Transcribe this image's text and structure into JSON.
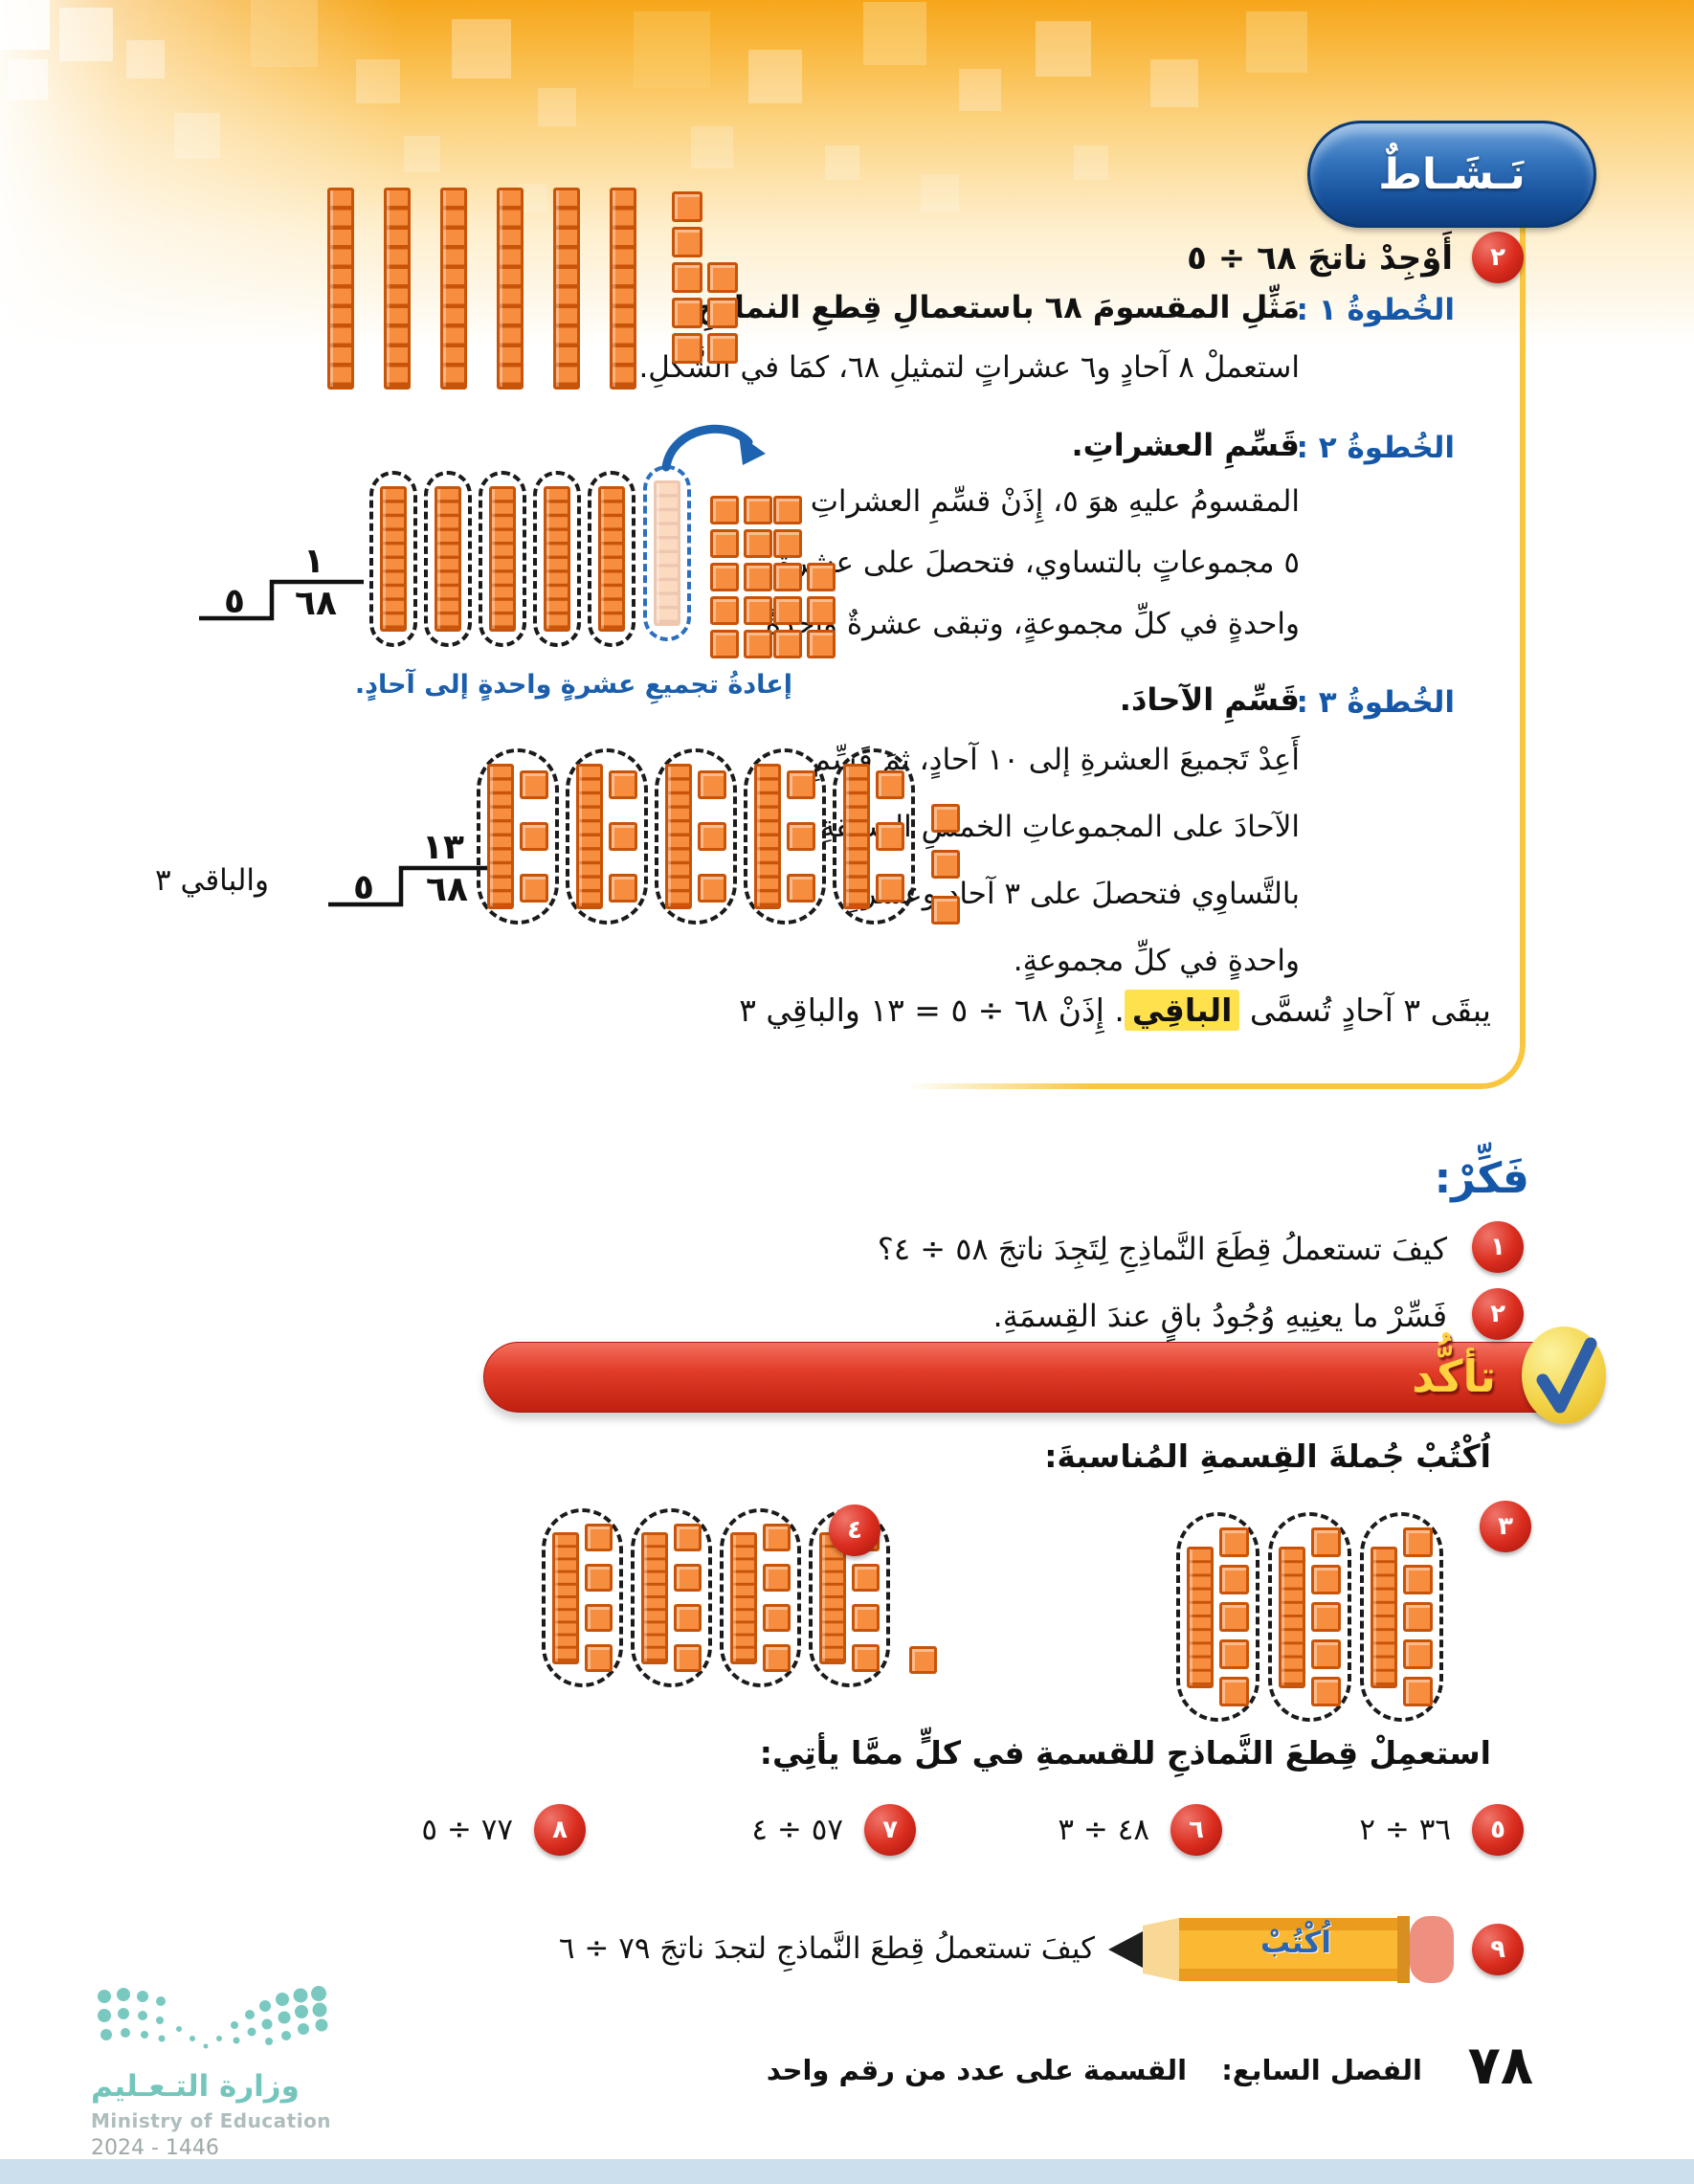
{
  "activity": {
    "badge": "نَـشَـاطٌ",
    "q2": {
      "num": "٢",
      "text": "أَوْجِدْ ناتجَ ٦٨ ÷ ٥"
    },
    "steps": [
      {
        "label": "الخُطوةُ ١ :",
        "title": "مَثِّلِ المقسومَ ٦٨ باستعمالِ قِطعِ النماذجِ.",
        "lines": [
          "استعملْ ٨ آحادٍ و٦ عشراتٍ لتمثيلِ ٦٨، كمَا في الشَّكلِ."
        ]
      },
      {
        "label": "الخُطوةُ ٢ :",
        "title": "قَسِّمِ العشراتِ.",
        "lines": [
          "المقسومُ عليهِ هوَ ٥، إِذَنْ قسِّمِ العشراتِ",
          "٥ مجموعاتٍ بالتساوي، فتحصلَ على عشرةٍ",
          "واحدةٍ في كلِّ مجموعةٍ، وتبقى عشرةٌ واحدةٌ."
        ]
      },
      {
        "label": "الخُطوةُ ٣ :",
        "title": "قَسِّمِ الآحادَ.",
        "lines": [
          "أَعِدْ تَجميعَ العشرةِ إلى ١٠ آحادٍ، ثمَ قَسِّمِ",
          "الآحادَ على المجموعاتِ الخمسِ السابقةِ",
          "بالتَّساوِي فتحصلَ على ٣ آحادٍ وعشرةٍ",
          "واحدةٍ في كلِّ مجموعةٍ."
        ]
      }
    ],
    "regroup_caption": "إعادةُ تجميعِ عشرةٍ واحدةٍ إلى آحادٍ.",
    "division1": {
      "quotient": "١",
      "dividend": "٦٨",
      "divisor": "٥"
    },
    "division2": {
      "quotient": "١٣",
      "dividend": "٦٨",
      "divisor": "٥",
      "remainder_text": "والباقي ٣"
    },
    "result_line": {
      "before": "يبقَى ٣ آحادٍ تُسمَّى ",
      "highlight": "الباقِي",
      "after": ". إِذَنْ ٦٨ ÷ ٥ = ١٣ والباقِي ٣"
    }
  },
  "think": {
    "heading": "فَكِّرْ:",
    "items": [
      {
        "num": "١",
        "text": "كيفَ تستعملُ قِطَعَ النَّماذِجِ لِتَجِدَ ناتجَ ٥٨ ÷ ٤؟"
      },
      {
        "num": "٢",
        "text": "فَسِّرْ ما يعنِيهِ وُجُودُ باقٍ عندَ القِسمَةِ."
      }
    ]
  },
  "check": {
    "banner": "تأكُّد",
    "write_heading": "اُكْتُبْ جُملةَ القِسمةِ المُناسبةَ:",
    "q3_num": "٣",
    "q4_num": "٤",
    "use_heading": "استعمِلْ قِطعَ النَّماذجِ للقسمةِ في كلٍّ ممَّا يأتِي:",
    "exercises": [
      {
        "num": "٥",
        "expr": "٣٦ ÷ ٢"
      },
      {
        "num": "٦",
        "expr": "٤٨ ÷ ٣"
      },
      {
        "num": "٧",
        "expr": "٥٧ ÷ ٤"
      },
      {
        "num": "٨",
        "expr": "٧٧ ÷ ٥"
      }
    ],
    "q9": {
      "num": "٩",
      "pencil_label": "اُكْتُبْ",
      "text": "كيفَ تستعملُ قِطعَ النَّماذجِ لتجدَ ناتجَ ٧٩ ÷ ٦"
    }
  },
  "models": {
    "step1": {
      "rods": 6,
      "pile": [
        5,
        3
      ]
    },
    "step2": {
      "groups": 5,
      "rods_per_group": 1,
      "ones_per_group": 0,
      "leftover_ones": 0,
      "regroup_pile": [
        5,
        5
      ],
      "ones_pile": [
        5,
        3
      ]
    },
    "step3": {
      "groups": 5,
      "rods_per_group": 1,
      "ones_per_group": 3,
      "leftover_ones": 3
    },
    "q3_model": {
      "groups": 3,
      "rods_per_group": 1,
      "ones_per_group": 5,
      "leftover_ones": 0
    },
    "q4_model": {
      "groups": 4,
      "rods_per_group": 1,
      "ones_per_group": 4,
      "leftover_ones": 1
    }
  },
  "footer": {
    "page_number": "٧٨",
    "chapter_label": "الفصل السابع:",
    "chapter_title": "القسمة على عدد من رقم واحد"
  },
  "logo": {
    "title_ar": "وزارة التـعـليم",
    "title_en": "Ministry of Education",
    "years": "2024 - 1446"
  }
}
